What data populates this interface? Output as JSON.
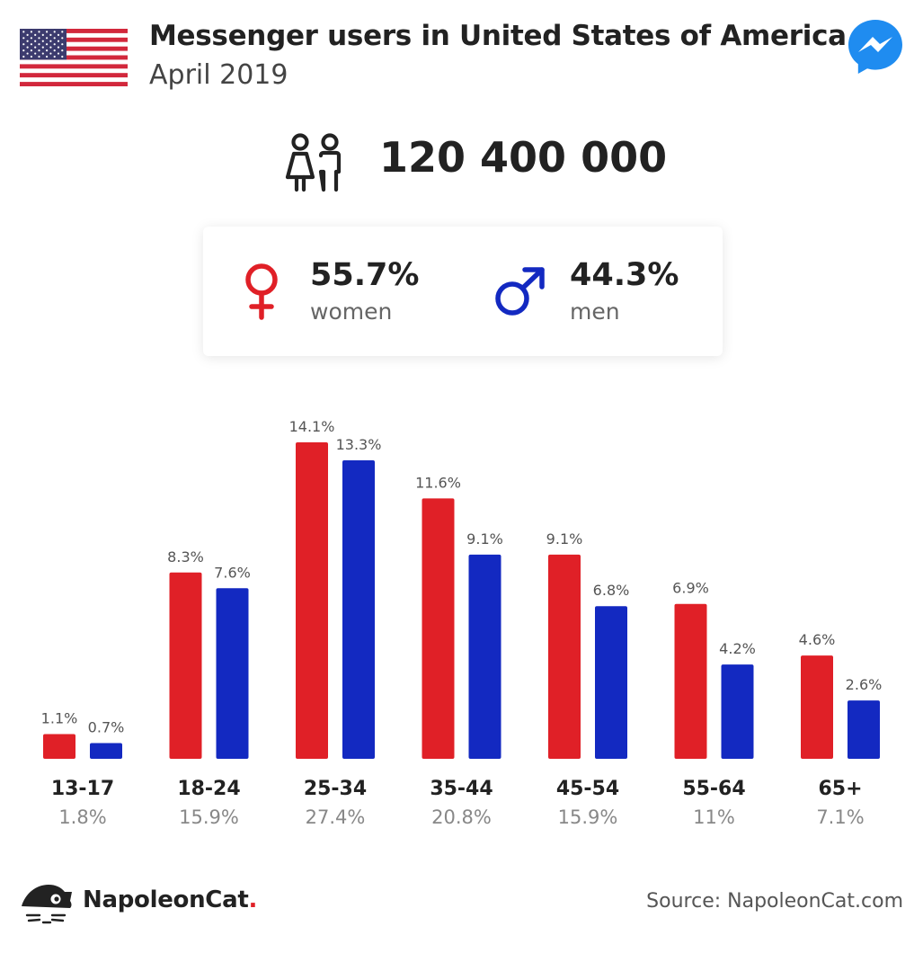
{
  "header": {
    "title": "Messenger users in United States of America",
    "subtitle": "April 2019"
  },
  "total": {
    "value": "120 400 000"
  },
  "gender": {
    "women": {
      "percent": "55.7%",
      "label": "women"
    },
    "men": {
      "percent": "44.3%",
      "label": "men"
    }
  },
  "colors": {
    "women": "#e02027",
    "men": "#1329c1"
  },
  "chart_data": {
    "type": "bar",
    "categories": [
      "13-17",
      "18-24",
      "25-34",
      "35-44",
      "45-54",
      "55-64",
      "65+"
    ],
    "group_totals": [
      "1.8%",
      "15.9%",
      "27.4%",
      "20.8%",
      "15.9%",
      "11%",
      "7.1%"
    ],
    "series": [
      {
        "key": "women",
        "values": [
          1.1,
          8.3,
          14.1,
          11.6,
          9.1,
          6.9,
          4.6
        ],
        "labels": [
          "1.1%",
          "8.3%",
          "14.1%",
          "11.6%",
          "9.1%",
          "6.9%",
          "4.6%"
        ]
      },
      {
        "key": "men",
        "values": [
          0.7,
          7.6,
          13.3,
          9.1,
          6.8,
          4.2,
          2.6
        ],
        "labels": [
          "0.7%",
          "7.6%",
          "13.3%",
          "9.1%",
          "6.8%",
          "4.2%",
          "2.6%"
        ]
      }
    ],
    "grid": false
  },
  "footer": {
    "brand": "NapoleonCat",
    "brand_dot": ".",
    "source": "Source: NapoleonCat.com"
  }
}
